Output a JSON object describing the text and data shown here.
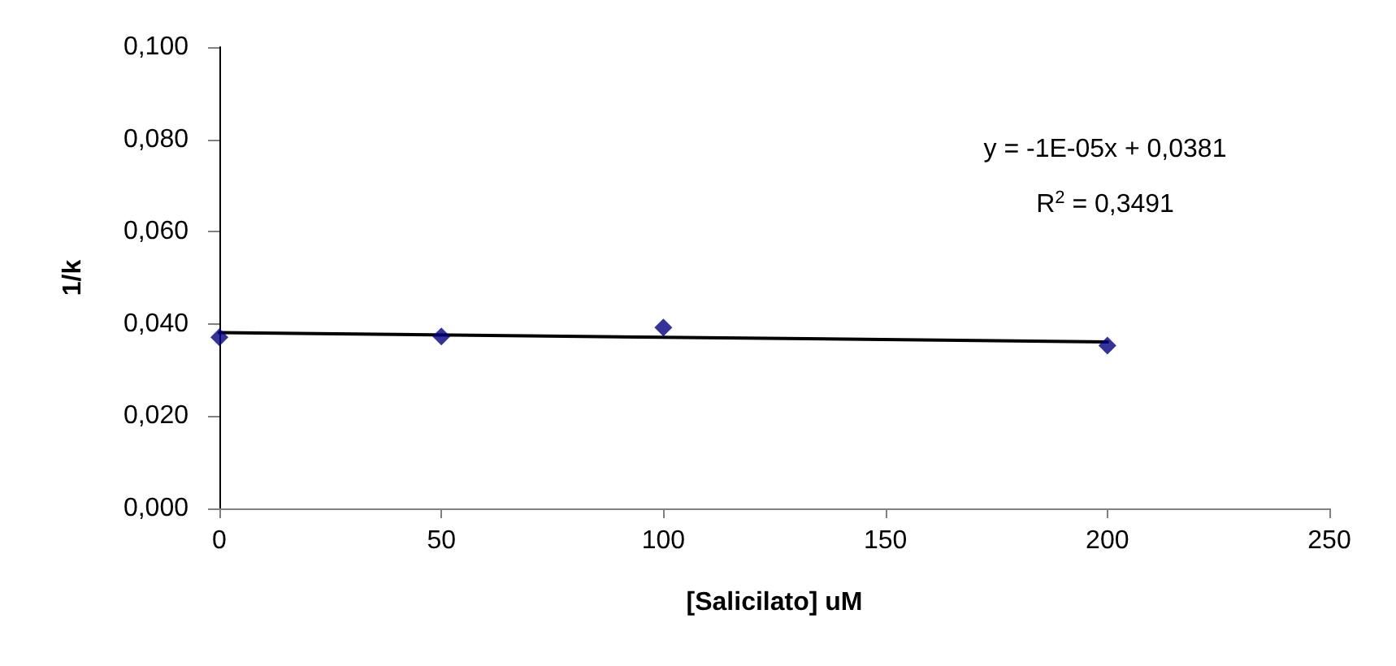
{
  "chart_data": {
    "type": "scatter",
    "xlabel": "[Salicilato] uM",
    "ylabel": "1/k",
    "x": [
      0,
      50,
      100,
      200
    ],
    "series": [
      {
        "color": "#000080",
        "marker": "diamond",
        "values": [
          0.0371,
          0.0373,
          0.0392,
          0.0353
        ]
      },
      {
        "type": "line",
        "color": "#000000",
        "marker": "none",
        "line_style": "solid",
        "x": [
          0,
          200
        ],
        "values": [
          0.0381,
          0.0361
        ]
      }
    ],
    "xlim": [
      0,
      250
    ],
    "xticks": [
      0,
      50,
      100,
      150,
      200,
      250
    ],
    "ylim": [
      0,
      0.1
    ],
    "yticks": [
      {
        "value": 0,
        "label": "0,000"
      },
      {
        "value": 0.02,
        "label": "0,020"
      },
      {
        "value": 0.04,
        "label": "0,040"
      },
      {
        "value": 0.06,
        "label": "0,060"
      },
      {
        "value": 0.08,
        "label": "0,080"
      },
      {
        "value": 0.1,
        "label": "0,100"
      }
    ],
    "annotations": [
      "y = -1E-05x + 0,0381",
      "R$^{2}$ = 0,3491"
    ],
    "grid": false
  }
}
